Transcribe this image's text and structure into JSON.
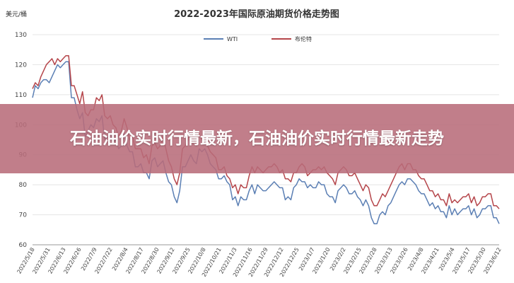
{
  "colors": {
    "wti": "#5b7fb4",
    "brent": "#b5454a",
    "grid": "#e4e4e4",
    "axis": "#444444",
    "banner": "#b86c7a"
  },
  "banner": {
    "text": "石油油价实时行情最新，石油油价实时行情最新走势"
  },
  "chart_data": {
    "type": "line",
    "title": "2022-2023年国际原油期货价格走势图",
    "ylabel": "美元/桶",
    "ylim": [
      60,
      130
    ],
    "yticks": [
      60,
      70,
      80,
      90,
      100,
      110,
      120,
      130
    ],
    "grid": true,
    "legend_position": "top",
    "x_tick_labels": [
      "2022/5/18",
      "2022/5/31",
      "2022/6/13",
      "2022/6/26",
      "2022/7/9",
      "2022/7/22",
      "2022/8/4",
      "2022/8/17",
      "2022/8/30",
      "2022/9/12",
      "2022/9/25",
      "2022/10/8",
      "2022/10/21",
      "2022/11/3",
      "2022/11/16",
      "2022/11/29",
      "2022/12/12",
      "2022/12/25",
      "2023/1/7",
      "2023/1/20",
      "2023/2/2",
      "2023/2/15",
      "2023/2/28",
      "2023/3/13",
      "2023/3/26",
      "2023/4/8",
      "2023/4/21",
      "2023/5/4",
      "2023/5/17",
      "2023/5/30",
      "2023/6/12"
    ],
    "series": [
      {
        "name": "WTI",
        "color": "#5b7fb4",
        "values": [
          109,
          113,
          112,
          114,
          115,
          115,
          114,
          116,
          118,
          120,
          119,
          120,
          121,
          121,
          109,
          109,
          105,
          102,
          104,
          96,
          98,
          100,
          99,
          102,
          101,
          103,
          95,
          96,
          97,
          94,
          95,
          92,
          93,
          97,
          93,
          91,
          91,
          86,
          86,
          87,
          84,
          84,
          82,
          88,
          89,
          86,
          87,
          88,
          84,
          81,
          80,
          76,
          74,
          78,
          86,
          86,
          88,
          90,
          88,
          87,
          92,
          91,
          92,
          90,
          87,
          86,
          85,
          82,
          82,
          83,
          81,
          80,
          75,
          76,
          73,
          76,
          75,
          75,
          78,
          80,
          77,
          80,
          79,
          78,
          78,
          79,
          80,
          81,
          80,
          79,
          79,
          75,
          76,
          75,
          79,
          80,
          82,
          81,
          81,
          79,
          80,
          79,
          79,
          81,
          80,
          80,
          77,
          76,
          76,
          74,
          78,
          79,
          80,
          79,
          77,
          77,
          78,
          76,
          75,
          73,
          75,
          73,
          69,
          67,
          67,
          70,
          71,
          70,
          73,
          74,
          76,
          78,
          80,
          81,
          80,
          82,
          82,
          81,
          80,
          78,
          77,
          77,
          75,
          73,
          74,
          72,
          73,
          71,
          71,
          69,
          73,
          70,
          72,
          70,
          71,
          72,
          72,
          73,
          70,
          72,
          69,
          70,
          72,
          72,
          73,
          73,
          69,
          69,
          67
        ]
      },
      {
        "name": "布伦特",
        "color": "#b5454a",
        "values": [
          112,
          114,
          113,
          116,
          118,
          120,
          121,
          122,
          120,
          122,
          121,
          122,
          123,
          123,
          113,
          113,
          110,
          107,
          111,
          104,
          103,
          105,
          105,
          109,
          108,
          110,
          103,
          102,
          103,
          100,
          99,
          96,
          98,
          102,
          99,
          95,
          96,
          92,
          92,
          92,
          89,
          90,
          87,
          93,
          94,
          92,
          93,
          96,
          92,
          88,
          86,
          82,
          80,
          84,
          92,
          93,
          95,
          98,
          95,
          93,
          97,
          95,
          97,
          93,
          91,
          90,
          89,
          85,
          85,
          86,
          83,
          82,
          79,
          80,
          77,
          80,
          79,
          79,
          83,
          86,
          84,
          86,
          85,
          84,
          85,
          86,
          86,
          87,
          86,
          84,
          85,
          82,
          82,
          81,
          84,
          84,
          86,
          87,
          86,
          83,
          84,
          85,
          85,
          86,
          85,
          86,
          84,
          83,
          82,
          80,
          84,
          85,
          86,
          85,
          83,
          83,
          84,
          82,
          80,
          78,
          80,
          79,
          75,
          73,
          73,
          75,
          77,
          76,
          78,
          80,
          82,
          84,
          86,
          87,
          85,
          87,
          87,
          85,
          85,
          83,
          82,
          82,
          80,
          78,
          78,
          76,
          77,
          75,
          75,
          73,
          77,
          74,
          75,
          74,
          75,
          76,
          76,
          77,
          74,
          76,
          73,
          74,
          76,
          76,
          77,
          77,
          73,
          73,
          72
        ]
      }
    ]
  }
}
